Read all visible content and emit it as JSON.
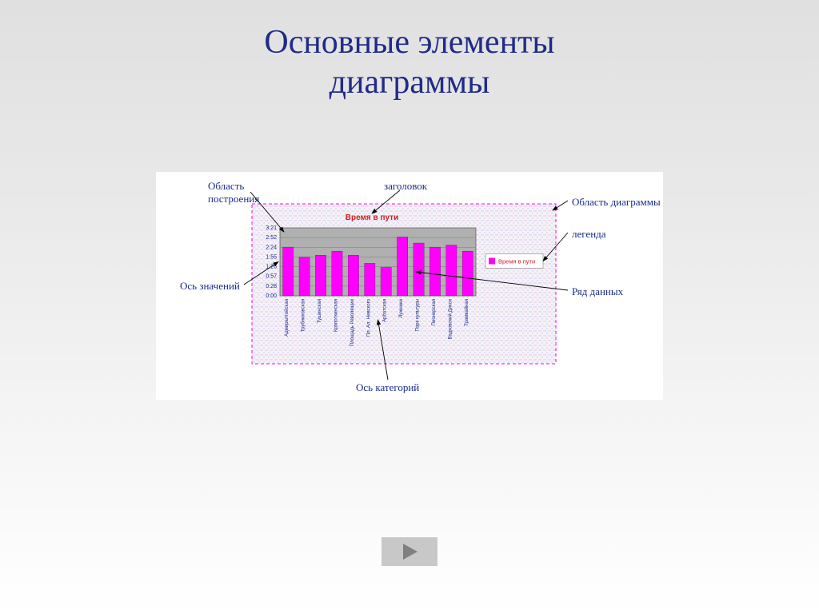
{
  "title": {
    "line1": "Основные элементы",
    "line2": "диаграммы",
    "color": "#202b88",
    "fontsize": 42,
    "font_family": "Times New Roman"
  },
  "labels": {
    "plot_area_1": "Область",
    "plot_area_2": "построения",
    "chart_title": "заголовок",
    "chart_area": "Область диаграммы",
    "legend": "легенда",
    "value_axis": "Ось значений",
    "data_series": "Ряд данных",
    "category_axis": "Ось категорий",
    "color": "#1a2a8a",
    "fontsize": 13
  },
  "chart": {
    "title_text": "Время в пути",
    "title_color": "#d02020",
    "title_fontsize": 10,
    "legend_text": "Время в пути",
    "legend_swatch": "#ff00ff",
    "plot_bg": "#b0b0b0",
    "outer_border": "#ff00ff",
    "bar_color": "#ff00ff",
    "grid_color": "#7a7a7a",
    "ylabels": [
      "0:00",
      "0:28",
      "0:57",
      "1:26",
      "1:55",
      "2:24",
      "2:52",
      "3:21"
    ],
    "ylabel_color": "#1a2a8a",
    "ylabel_fontsize": 7,
    "categories": [
      "Адмиралтейская",
      "Трубниковская",
      "Тушинская",
      "Кропоткинская",
      "Площадь Революции",
      "Пл. Ал. Невского",
      "Арбатская",
      "Лужники",
      "Парк культуры",
      "Пионерская",
      "Вадковский Дикси",
      "Трамвайная"
    ],
    "cat_color": "#1a2a8a",
    "cat_fontsize": 6,
    "values": [
      2.4,
      1.9,
      2.0,
      2.2,
      2.0,
      1.6,
      1.4,
      2.9,
      2.6,
      2.4,
      2.5,
      2.2
    ]
  },
  "nav": {
    "bg": "#c8c8c8",
    "arrow_color": "#808080"
  }
}
